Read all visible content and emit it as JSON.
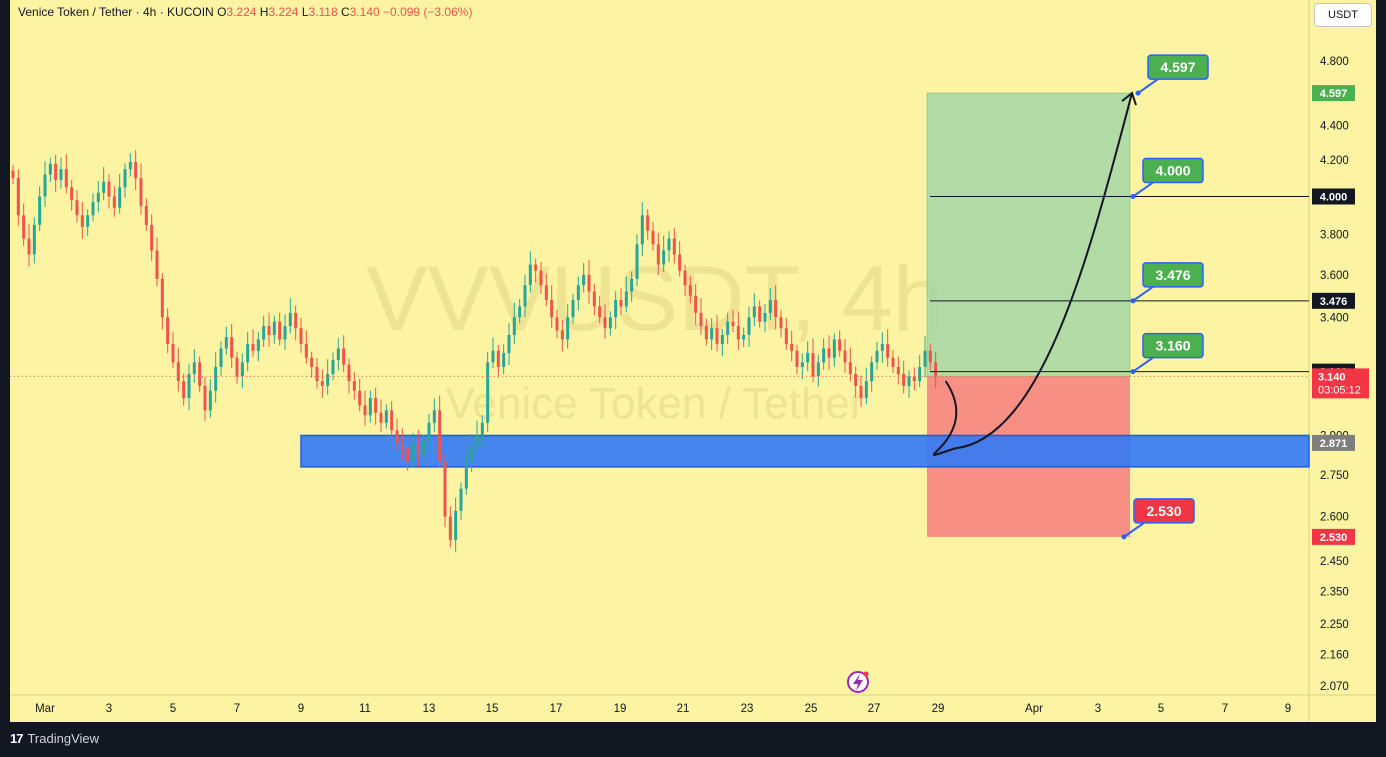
{
  "header": {
    "symbol": "Venice Token / Tether",
    "interval": "4h",
    "exchange": "KUCOIN",
    "o_label": "O",
    "o_value": "3.224",
    "h_label": "H",
    "h_value": "3.224",
    "l_label": "L",
    "l_value": "3.118",
    "c_label": "C",
    "c_value": "3.140",
    "change": "−0.099 (−3.06%)"
  },
  "currency_button": "USDT",
  "watermark": {
    "ticker": "VVVUSDT, 4h",
    "name": "Venice Token / Tether"
  },
  "footer": {
    "logo_mark": "17",
    "brand": "TradingView"
  },
  "colors": {
    "background": "#fcf4a3",
    "up": "#26a69a",
    "down": "#ef5350",
    "zone": "#3179f5",
    "target_fill": "#a5d6a7",
    "stop_fill": "#f77c80",
    "badge_green": "#4caf50",
    "badge_red": "#f23645"
  },
  "chart_data": {
    "type": "candlestick",
    "title": "Venice Token / Tether · 4h · KUCOIN",
    "x_axis": {
      "ticks": [
        "Mar",
        "3",
        "5",
        "7",
        "9",
        "11",
        "13",
        "15",
        "17",
        "19",
        "21",
        "23",
        "25",
        "27",
        "29",
        "Apr",
        "3",
        "5",
        "7",
        "9"
      ]
    },
    "y_axis": {
      "scale": "log",
      "range": [
        2.01,
        5.2
      ],
      "ticks": [
        "4.800",
        "4.400",
        "4.200",
        "3.800",
        "3.600",
        "3.400",
        "2.750",
        "2.600",
        "2.450",
        "2.350",
        "2.250",
        "2.160",
        "2.070"
      ],
      "partially_hidden_ticks": [
        "2.900"
      ]
    },
    "current_price": {
      "value": "3.140",
      "countdown": "03:05:12"
    },
    "series": [
      {
        "name": "VVVUSDT",
        "description": "4h candles from late Feb to Mar 26 (approximate close values)",
        "start_date": "2025-02-28",
        "step_hours": 4,
        "close": [
          4.1,
          3.9,
          3.78,
          3.7,
          3.85,
          4.0,
          4.12,
          4.18,
          4.09,
          4.15,
          4.05,
          3.98,
          3.9,
          3.84,
          3.9,
          3.97,
          4.02,
          4.08,
          4.0,
          3.94,
          4.05,
          4.15,
          4.19,
          4.1,
          3.95,
          3.85,
          3.72,
          3.58,
          3.4,
          3.28,
          3.2,
          3.12,
          3.05,
          3.15,
          3.2,
          3.1,
          3.0,
          3.08,
          3.18,
          3.26,
          3.31,
          3.22,
          3.14,
          3.2,
          3.28,
          3.25,
          3.3,
          3.36,
          3.32,
          3.38,
          3.3,
          3.36,
          3.42,
          3.35,
          3.28,
          3.22,
          3.18,
          3.12,
          3.1,
          3.15,
          3.21,
          3.26,
          3.19,
          3.12,
          3.08,
          3.02,
          2.98,
          3.05,
          2.99,
          2.95,
          3.0,
          2.92,
          2.87,
          2.85,
          2.8,
          2.87,
          2.82,
          2.88,
          2.95,
          3.0,
          2.8,
          2.6,
          2.52,
          2.62,
          2.7,
          2.8,
          2.86,
          2.9,
          2.95,
          3.2,
          3.25,
          3.18,
          3.24,
          3.32,
          3.4,
          3.45,
          3.55,
          3.65,
          3.62,
          3.55,
          3.48,
          3.4,
          3.34,
          3.3,
          3.4,
          3.48,
          3.55,
          3.6,
          3.52,
          3.45,
          3.4,
          3.35,
          3.4,
          3.48,
          3.45,
          3.52,
          3.58,
          3.75,
          3.9,
          3.82,
          3.75,
          3.65,
          3.72,
          3.78,
          3.7,
          3.62,
          3.55,
          3.5,
          3.42,
          3.36,
          3.3,
          3.35,
          3.28,
          3.32,
          3.38,
          3.36,
          3.3,
          3.32,
          3.4,
          3.45,
          3.38,
          3.42,
          3.48,
          3.4,
          3.35,
          3.28,
          3.25,
          3.18,
          3.2,
          3.24,
          3.14,
          3.2,
          3.26,
          3.22,
          3.3,
          3.25,
          3.2,
          3.15,
          3.1,
          3.05,
          3.12,
          3.2,
          3.25,
          3.28,
          3.22,
          3.18,
          3.15,
          3.1,
          3.14,
          3.12,
          3.18,
          3.25,
          3.2,
          3.14
        ]
      }
    ],
    "zones": [
      {
        "name": "demand-zone",
        "from": 2.78,
        "to": 2.9,
        "label": "2.871"
      }
    ],
    "position": {
      "entry": 3.14,
      "target": 4.597,
      "stop": 2.53,
      "take_profits": [
        "3.160",
        "3.476",
        "4.000",
        "4.597"
      ],
      "stop_label": "2.530"
    },
    "levels": [
      {
        "value": 4.0,
        "label": "4.000"
      },
      {
        "value": 3.476,
        "label": "3.476"
      },
      {
        "value": 3.16,
        "label": "3.160"
      }
    ],
    "axis_badges": [
      {
        "value": 4.597,
        "label": "4.597",
        "color": "#4caf50"
      },
      {
        "value": 4.0,
        "label": "4.000",
        "color": "#131722"
      },
      {
        "value": 3.476,
        "label": "3.476",
        "color": "#131722"
      },
      {
        "value": 3.16,
        "label": "3.160",
        "color": "#131722"
      },
      {
        "value": 2.871,
        "label": "2.871",
        "color": "#7e7e7e"
      },
      {
        "value": 2.53,
        "label": "2.530",
        "color": "#f23645"
      }
    ],
    "callouts": [
      {
        "value": 4.597,
        "label": "4.597",
        "color": "#4caf50"
      },
      {
        "value": 4.0,
        "label": "4.000",
        "color": "#4caf50"
      },
      {
        "value": 3.476,
        "label": "3.476",
        "color": "#4caf50"
      },
      {
        "value": 3.16,
        "label": "3.160",
        "color": "#4caf50"
      },
      {
        "value": 2.53,
        "label": "2.530",
        "color": "#f23645"
      }
    ],
    "projection": "curved path down into the 2.78–2.90 zone then up to 4.597",
    "grid": false,
    "legend": "none"
  }
}
